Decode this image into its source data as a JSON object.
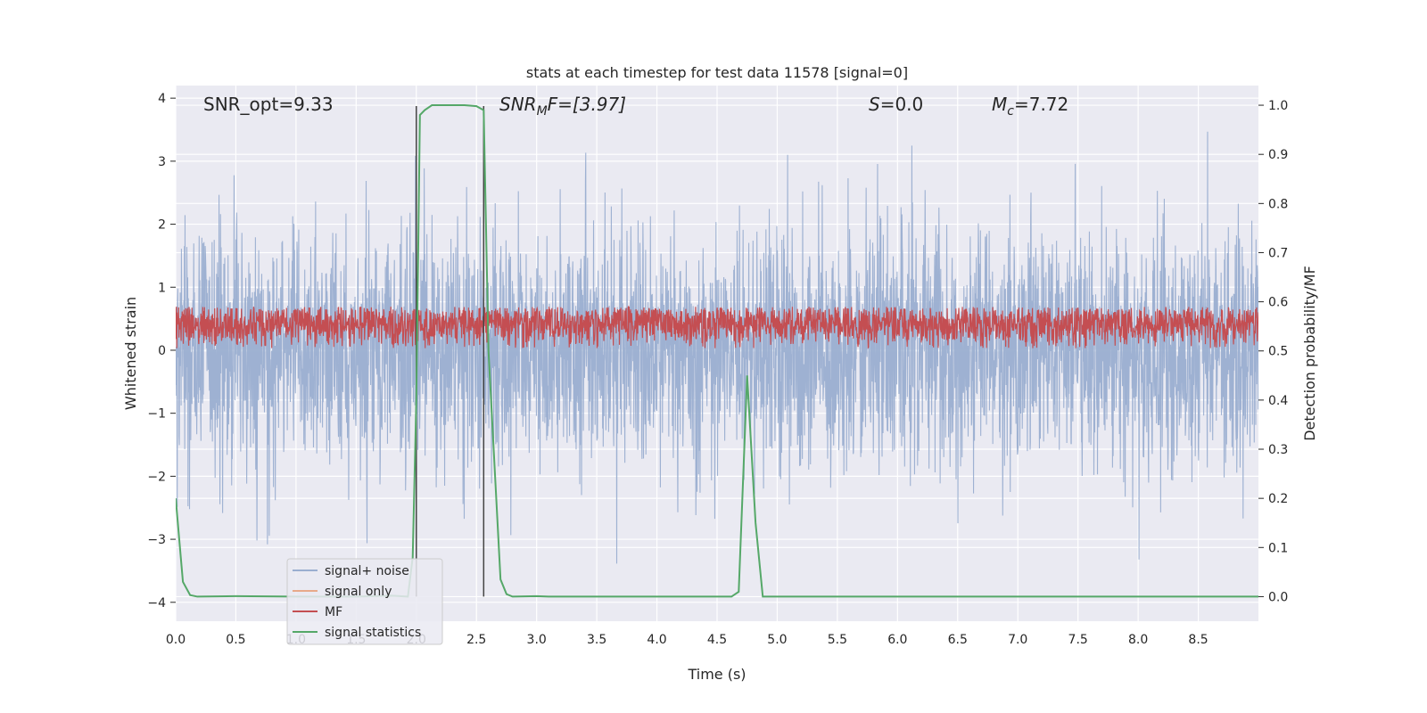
{
  "chart_data": {
    "type": "line",
    "title": "stats at each timestep for test data 11578 [signal=0]",
    "xlabel": "Time (s)",
    "ylabel_left": "Whitened strain",
    "ylabel_right": "Detection probability/MF",
    "xlim": [
      0,
      9
    ],
    "ylim_left": [
      -4.3,
      4.2
    ],
    "ylim_right": [
      -0.05,
      1.04
    ],
    "grid": true,
    "legend_position": "lower-left",
    "x_ticks": [
      "0.0",
      "0.5",
      "1.0",
      "1.5",
      "2.0",
      "2.5",
      "3.0",
      "3.5",
      "4.0",
      "4.5",
      "5.0",
      "5.5",
      "6.0",
      "6.5",
      "7.0",
      "7.5",
      "8.0",
      "8.5"
    ],
    "x_tick_values": [
      0,
      0.5,
      1,
      1.5,
      2,
      2.5,
      3,
      3.5,
      4,
      4.5,
      5,
      5.5,
      6,
      6.5,
      7,
      7.5,
      8,
      8.5
    ],
    "y_ticks_left": [
      "−4",
      "−3",
      "−2",
      "−1",
      "0",
      "1",
      "2",
      "3",
      "4"
    ],
    "y_tick_values_left": [
      -4,
      -3,
      -2,
      -1,
      0,
      1,
      2,
      3,
      4
    ],
    "y_ticks_right": [
      "0.0",
      "0.1",
      "0.2",
      "0.3",
      "0.4",
      "0.5",
      "0.6",
      "0.7",
      "0.8",
      "0.9",
      "1.0"
    ],
    "y_tick_values_right": [
      0,
      0.1,
      0.2,
      0.3,
      0.4,
      0.5,
      0.6,
      0.7,
      0.8,
      0.9,
      1.0
    ],
    "annotations": [
      {
        "key": "snr-opt",
        "text": "SNR_opt=9.33"
      },
      {
        "key": "snr-mf",
        "text": "SNR",
        "sub": "M",
        "text2": "F=[3.97]",
        "italic": true
      },
      {
        "key": "s-value",
        "text": "S",
        "text2": "=0.0",
        "italic": true
      },
      {
        "key": "mc-value",
        "text": "M",
        "sub": "c",
        "text2": "=7.72",
        "italic": true
      }
    ],
    "vertical_markers": [
      2.0,
      2.56
    ],
    "series": [
      {
        "name": "signal+ noise",
        "color": "#9aaed0",
        "axis": "left",
        "style": "dense-noise",
        "amplitude_envelope": {
          "typical_max": 2.3,
          "typical_min": -2.2,
          "peak_max": 3.85,
          "peak_min": -4.0
        }
      },
      {
        "name": "signal only",
        "color": "#e8a98a",
        "axis": "left",
        "values": []
      },
      {
        "name": "MF",
        "color": "#c44e52",
        "axis": "right",
        "style": "dense-noise",
        "amplitude_envelope": {
          "center": 0.555,
          "half_width": 0.025,
          "peak_max": 0.59
        }
      },
      {
        "name": "signal statistics",
        "color": "#55a868",
        "axis": "right",
        "x": [
          0.0,
          0.06,
          0.12,
          0.18,
          0.5,
          1.0,
          1.5,
          1.8,
          1.93,
          1.97,
          2.0,
          2.03,
          2.07,
          2.13,
          2.2,
          2.4,
          2.5,
          2.56,
          2.6,
          2.7,
          2.75,
          2.8,
          3.0,
          3.1,
          4.0,
          4.5,
          4.62,
          4.68,
          4.75,
          4.82,
          4.88,
          5.0,
          9.0
        ],
        "y": [
          0.2,
          0.03,
          0.003,
          0.0,
          0.001,
          0.0,
          0.0,
          0.002,
          0.0,
          0.08,
          0.4,
          0.98,
          0.99,
          1.0,
          1.0,
          1.0,
          0.998,
          0.99,
          0.5,
          0.035,
          0.005,
          0.0,
          0.001,
          0.0,
          0.0,
          0.0,
          0.0,
          0.01,
          0.45,
          0.15,
          0.0,
          0.0,
          0.0
        ]
      }
    ]
  }
}
